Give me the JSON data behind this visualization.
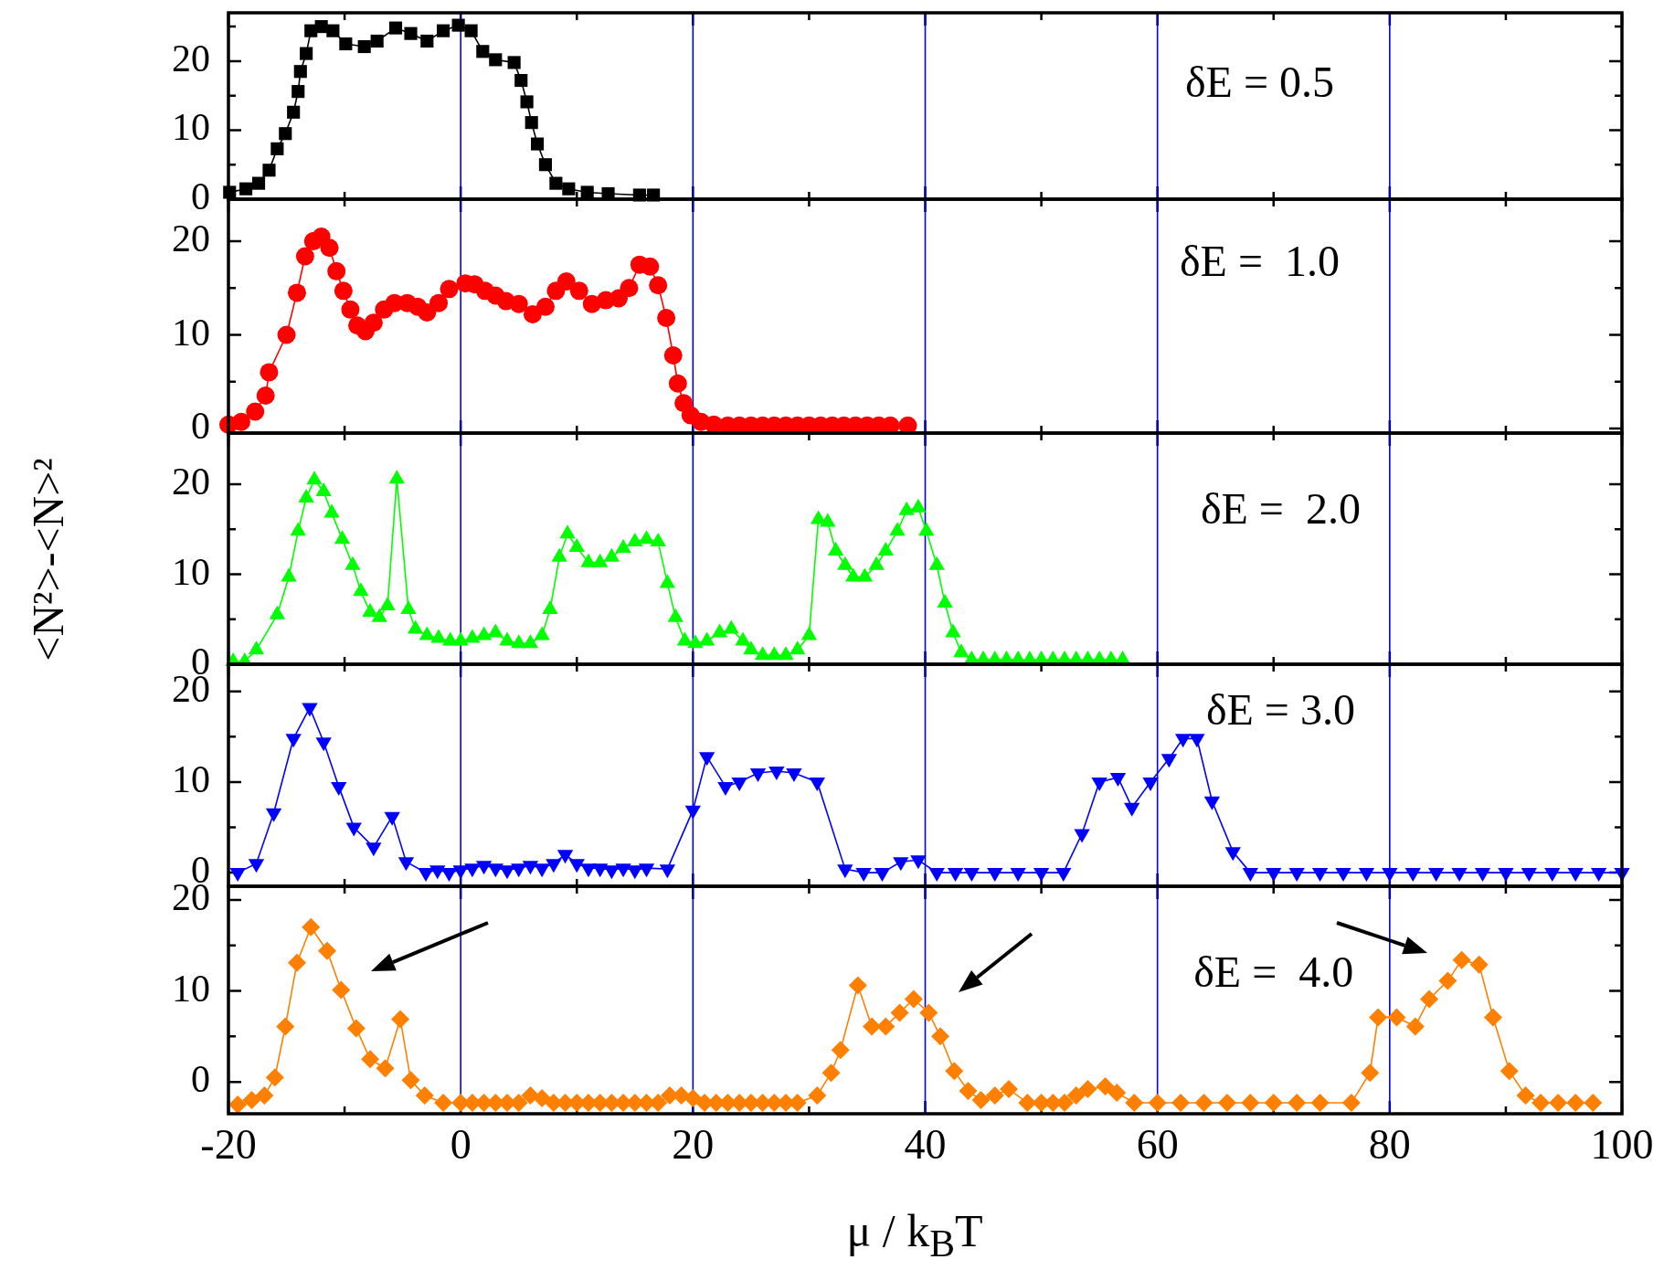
{
  "chart_data": [
    {
      "type": "line",
      "annotations": [
        "δE = 0.5"
      ],
      "xlim": [
        -20,
        100
      ],
      "xticks": [
        -20,
        {
          "value": -10,
          "label": null
        },
        0,
        {
          "value": 10,
          "label": null
        },
        20,
        {
          "value": 30,
          "label": null
        },
        40,
        {
          "value": 50,
          "label": null
        },
        60,
        {
          "value": 70,
          "label": null
        },
        80,
        {
          "value": 90,
          "label": null
        },
        100
      ],
      "ylim": [
        0,
        27
      ],
      "yticks": [
        0,
        {
          "value": 5,
          "label": null
        },
        10,
        {
          "value": 15,
          "label": null
        },
        20,
        {
          "value": 25,
          "label": null
        }
      ],
      "tick_labels": "y",
      "marker": "square",
      "grid": "x",
      "series": [
        {
          "color": "#000000",
          "x": [
            -19.9,
            -18.5,
            -17.4,
            -16.5,
            -15.8,
            -15.1,
            -14.4,
            -14,
            -13.8,
            -13.3,
            -12.9,
            -12,
            -11,
            -9.9,
            -8.3,
            -7.2,
            -5.6,
            -4.3,
            -2.9,
            -1.5,
            -0.2,
            0.9,
            1.9,
            3,
            4.6,
            5.2,
            5.7,
            6.1,
            6.6,
            7.3,
            8.2,
            9.3,
            10.9,
            12.7,
            15.4,
            16.6
          ],
          "values": [
            1,
            1.5,
            2.3,
            4.2,
            7.3,
            9.5,
            12.6,
            15.6,
            18.5,
            21.1,
            24.4,
            25,
            24.4,
            22.5,
            22.1,
            22.9,
            24.8,
            24,
            22.9,
            24.4,
            25.2,
            24.4,
            21.4,
            20.2,
            19.8,
            17.2,
            14.1,
            11.1,
            8,
            5,
            2.3,
            1.5,
            1,
            0.8,
            0.6,
            0.6
          ]
        }
      ]
    },
    {
      "type": "line",
      "annotations": [
        "δE =  1.0"
      ],
      "xlim": [
        -20,
        100
      ],
      "xticks": [
        -20,
        {
          "value": -10,
          "label": null
        },
        0,
        {
          "value": 10,
          "label": null
        },
        20,
        {
          "value": 30,
          "label": null
        },
        40,
        {
          "value": 50,
          "label": null
        },
        60,
        {
          "value": 70,
          "label": null
        },
        80,
        {
          "value": 90,
          "label": null
        },
        100
      ],
      "ylim": [
        -0.5,
        24.5
      ],
      "yticks": [
        0,
        {
          "value": 5,
          "label": null
        },
        10,
        {
          "value": 15,
          "label": null
        },
        20
      ],
      "tick_labels": "y",
      "marker": "circle",
      "grid": "x",
      "series": [
        {
          "color": "#ff0000",
          "x": [
            -20,
            -18.9,
            -17.7,
            -16.8,
            -16.5,
            -15,
            -14.1,
            -13.4,
            -12.7,
            -12,
            -11.3,
            -10.7,
            -10.1,
            -9.5,
            -8.9,
            -8.2,
            -7.5,
            -6.6,
            -5.7,
            -4.6,
            -3.7,
            -2.9,
            -1.9,
            -1,
            0.4,
            1.2,
            2.1,
            3,
            3.9,
            5,
            6.2,
            7.3,
            8.2,
            9.1,
            10.2,
            11.3,
            12.5,
            13.6,
            14.5,
            15.4,
            16.3,
            17,
            17.7,
            18.3,
            18.7,
            19.2,
            19.8,
            20.7,
            21.8,
            23,
            24,
            25,
            26,
            27,
            28,
            29,
            30,
            31,
            32,
            33,
            34,
            35,
            36,
            37,
            38.5
          ],
          "values": [
            0.4,
            0.7,
            1.8,
            3.5,
            6,
            10,
            14.5,
            18.4,
            20,
            20.5,
            19.3,
            16.8,
            14.7,
            12.7,
            11,
            10.4,
            11.3,
            12.7,
            13.4,
            13.4,
            13,
            12.4,
            13.4,
            14.9,
            15.5,
            15.4,
            14.7,
            14.2,
            13.6,
            13.3,
            12.2,
            13,
            14.7,
            15.7,
            14.7,
            13.3,
            13.7,
            13.9,
            15,
            17.5,
            17.3,
            15.3,
            11.8,
            7.8,
            4.8,
            2.7,
            1.4,
            0.7,
            0.4,
            0.3,
            0.3,
            0.3,
            0.3,
            0.3,
            0.3,
            0.3,
            0.3,
            0.3,
            0.3,
            0.3,
            0.3,
            0.3,
            0.3,
            0.3,
            0.3
          ]
        }
      ]
    },
    {
      "type": "line",
      "ylabel": "<N²>-<N>²",
      "annotations": [
        "δE =  2.0"
      ],
      "xlim": [
        -20,
        100
      ],
      "xticks": [
        -20,
        {
          "value": -10,
          "label": null
        },
        0,
        {
          "value": 10,
          "label": null
        },
        20,
        {
          "value": 30,
          "label": null
        },
        40,
        {
          "value": 50,
          "label": null
        },
        60,
        {
          "value": 70,
          "label": null
        },
        80,
        {
          "value": 90,
          "label": null
        },
        100
      ],
      "ylim": [
        0,
        25.7
      ],
      "yticks": [
        0,
        {
          "value": 5,
          "label": null
        },
        10,
        {
          "value": 15,
          "label": null
        },
        20
      ],
      "tick_labels": "y",
      "marker": "triangle",
      "grid": "x",
      "series": [
        {
          "color": "#00ff00",
          "x": [
            -19.6,
            -18.6,
            -17.6,
            -15.8,
            -14.8,
            -14,
            -13.3,
            -12.6,
            -11.8,
            -11.1,
            -10.2,
            -9.3,
            -8.6,
            -7.8,
            -7,
            -6.3,
            -5.5,
            -4.5,
            -3.9,
            -2.9,
            -1.9,
            -0.9,
            0,
            1,
            2,
            3,
            4,
            5,
            6,
            7,
            7.7,
            8.5,
            9.2,
            10,
            11,
            12,
            13,
            14,
            15,
            16,
            17,
            17.8,
            18.5,
            19.3,
            20.2,
            21.2,
            22.3,
            23.3,
            24.3,
            25,
            26,
            27,
            28,
            29,
            30,
            30.8,
            31.6,
            32.3,
            33.1,
            33.8,
            34.8,
            35.8,
            36.6,
            37.6,
            38.4,
            39.4,
            40.1,
            41,
            41.7,
            42.4,
            43.1,
            44,
            45,
            46,
            47,
            48,
            49,
            50,
            51,
            52,
            53,
            54,
            55,
            56,
            57
          ],
          "values": [
            0.3,
            0.3,
            1.6,
            5.5,
            9.7,
            14.8,
            18.5,
            20.5,
            19.2,
            16.8,
            13.9,
            11,
            8.1,
            5.8,
            5.2,
            6.5,
            20.6,
            6.1,
            3.9,
            3.2,
            2.9,
            2.6,
            2.6,
            2.9,
            3.2,
            3.5,
            2.6,
            2.3,
            2.3,
            3.2,
            6.1,
            11.9,
            14.5,
            13,
            11.3,
            11.3,
            11.9,
            12.9,
            13.6,
            13.9,
            13.6,
            9,
            5.2,
            2.6,
            2.3,
            2.6,
            3.5,
            3.9,
            2.6,
            1.6,
            1,
            1,
            1,
            1.6,
            3.2,
            16.1,
            15.8,
            12.6,
            11,
            9.7,
            9.7,
            11,
            12.6,
            14.8,
            17.1,
            17.4,
            14.8,
            11,
            6.8,
            3.5,
            1.3,
            0.5,
            0.5,
            0.5,
            0.5,
            0.5,
            0.5,
            0.5,
            0.5,
            0.5,
            0.5,
            0.5,
            0.5,
            0.5,
            0.5
          ]
        }
      ]
    },
    {
      "type": "line",
      "annotations": [
        "δE = 3.0"
      ],
      "xlim": [
        -20,
        100
      ],
      "xticks": [
        -20,
        {
          "value": -10,
          "label": null
        },
        0,
        {
          "value": 10,
          "label": null
        },
        20,
        {
          "value": 30,
          "label": null
        },
        40,
        {
          "value": 50,
          "label": null
        },
        60,
        {
          "value": 70,
          "label": null
        },
        80,
        {
          "value": 90,
          "label": null
        },
        100
      ],
      "ylim": [
        -1.5,
        23
      ],
      "yticks": [
        0,
        {
          "value": 5,
          "label": null
        },
        10,
        {
          "value": 15,
          "label": null
        },
        20
      ],
      "tick_labels": "y",
      "marker": "triangle",
      "grid": "x",
      "series": [
        {
          "color": "#0000ff",
          "x": [
            -19.2,
            -17.6,
            -16.1,
            -14.4,
            -13,
            -11.8,
            -10.5,
            -9.2,
            -7.5,
            -5.9,
            -4.7,
            -3,
            -2,
            -1,
            0,
            1,
            2,
            3,
            4,
            5,
            6,
            7,
            8,
            9,
            10,
            11,
            12,
            13,
            14,
            15,
            16,
            17.8,
            20,
            21.2,
            22.8,
            24,
            25.6,
            27.2,
            28.7,
            30.7,
            33.1,
            34.7,
            36.3,
            37.9,
            39.4,
            41,
            42.6,
            44,
            46,
            48,
            50,
            51.9,
            53.5,
            55,
            56.6,
            57.8,
            59.4,
            61,
            62.2,
            63.4,
            64.7,
            66.5,
            68,
            70,
            72,
            74,
            76,
            78,
            80,
            82,
            84,
            86,
            88,
            90,
            92,
            94,
            96,
            98,
            100
          ],
          "values": [
            0,
            1,
            6.6,
            14.8,
            18.2,
            14.4,
            9.5,
            5,
            2.8,
            6.2,
            1.2,
            0,
            0.3,
            0,
            0.3,
            0.5,
            0.8,
            0.5,
            0.3,
            0.5,
            0.8,
            0.5,
            1,
            2,
            1,
            0.5,
            0.5,
            0.3,
            0.5,
            0.3,
            0.5,
            0.4,
            6.9,
            12.8,
            9.5,
            10,
            11,
            11.2,
            11,
            10,
            0.4,
            0,
            0,
            1.2,
            1.4,
            0,
            0,
            0,
            0,
            0,
            0,
            0,
            4.3,
            10,
            10.5,
            7.2,
            10,
            12.6,
            14.8,
            14.8,
            7.9,
            2.3,
            0,
            0,
            0,
            0,
            0,
            0,
            0,
            0,
            0,
            0,
            0,
            0,
            0,
            0,
            0,
            0,
            0
          ]
        }
      ]
    },
    {
      "type": "line",
      "xlabel": "μ / k$_{B}$T",
      "annotations": [
        "δE =  4.0"
      ],
      "xlim": [
        -20,
        100
      ],
      "xticks": [
        -20,
        {
          "value": -10,
          "label": null
        },
        0,
        {
          "value": 10,
          "label": null
        },
        20,
        {
          "value": 30,
          "label": null
        },
        40,
        {
          "value": 50,
          "label": null
        },
        60,
        {
          "value": 70,
          "label": null
        },
        80,
        {
          "value": 90,
          "label": null
        },
        100
      ],
      "ylim": [
        -3.5,
        21.5
      ],
      "yticks": [
        0,
        {
          "value": 5,
          "label": null
        },
        10,
        {
          "value": 15,
          "label": null
        },
        20
      ],
      "marker": "diamond",
      "grid": "x",
      "series": [
        {
          "color": "#ff8000",
          "x": [
            -19.2,
            -18,
            -16.9,
            -16,
            -15.1,
            -14.1,
            -12.9,
            -11.5,
            -10.3,
            -9,
            -7.8,
            -6.5,
            -5.2,
            -4.3,
            -3.1,
            -1.5,
            0,
            1,
            2,
            3,
            4,
            5,
            6,
            7,
            8,
            9,
            10,
            11,
            12,
            13,
            14,
            15,
            16,
            17,
            18,
            19,
            20,
            21,
            22,
            23,
            24,
            25,
            26,
            27,
            28,
            29,
            30.7,
            31.9,
            32.7,
            34.2,
            35.4,
            36.6,
            37.8,
            39,
            40.3,
            41.3,
            42.5,
            43.7,
            44.8,
            46,
            47.2,
            48.8,
            50,
            51,
            52,
            53,
            54,
            55.5,
            56.5,
            58,
            60,
            62,
            64,
            66,
            68,
            70,
            72,
            74,
            76.7,
            78.3,
            79,
            80.6,
            82.2,
            83.4,
            85,
            86.2,
            87.7,
            88.9,
            90.3,
            91.7,
            93,
            94.5,
            96,
            97.5
          ],
          "values": [
            -2.5,
            -2,
            -1.5,
            0.5,
            6.1,
            13.1,
            17,
            14.4,
            10.1,
            5.9,
            2.5,
            1.5,
            6.9,
            0.2,
            -1.5,
            -2.3,
            -2.3,
            -2.3,
            -2.3,
            -2.3,
            -2.3,
            -2.3,
            -1.5,
            -1.8,
            -2.3,
            -2.3,
            -2.3,
            -2.3,
            -2.3,
            -2.3,
            -2.3,
            -2.3,
            -2.3,
            -2.3,
            -1.5,
            -1.5,
            -1.8,
            -2.3,
            -2.3,
            -2.3,
            -2.3,
            -2.3,
            -2.3,
            -2.3,
            -2.3,
            -2.3,
            -1.5,
            1,
            3.5,
            10.6,
            6.1,
            6.1,
            7.6,
            9.1,
            7.6,
            5,
            1.2,
            -1,
            -2,
            -1.5,
            -0.8,
            -2.3,
            -2.3,
            -2.3,
            -2.3,
            -1.5,
            -0.8,
            -0.5,
            -1.2,
            -2.3,
            -2.3,
            -2.3,
            -2.3,
            -2.3,
            -2.3,
            -2.3,
            -2.3,
            -2.3,
            -2.3,
            1,
            7.1,
            7.1,
            6.1,
            9.1,
            11.1,
            13.4,
            12.9,
            7.1,
            1.2,
            -1.5,
            -2.3,
            -2.3,
            -2.3,
            -2.3
          ]
        }
      ]
    }
  ]
}
